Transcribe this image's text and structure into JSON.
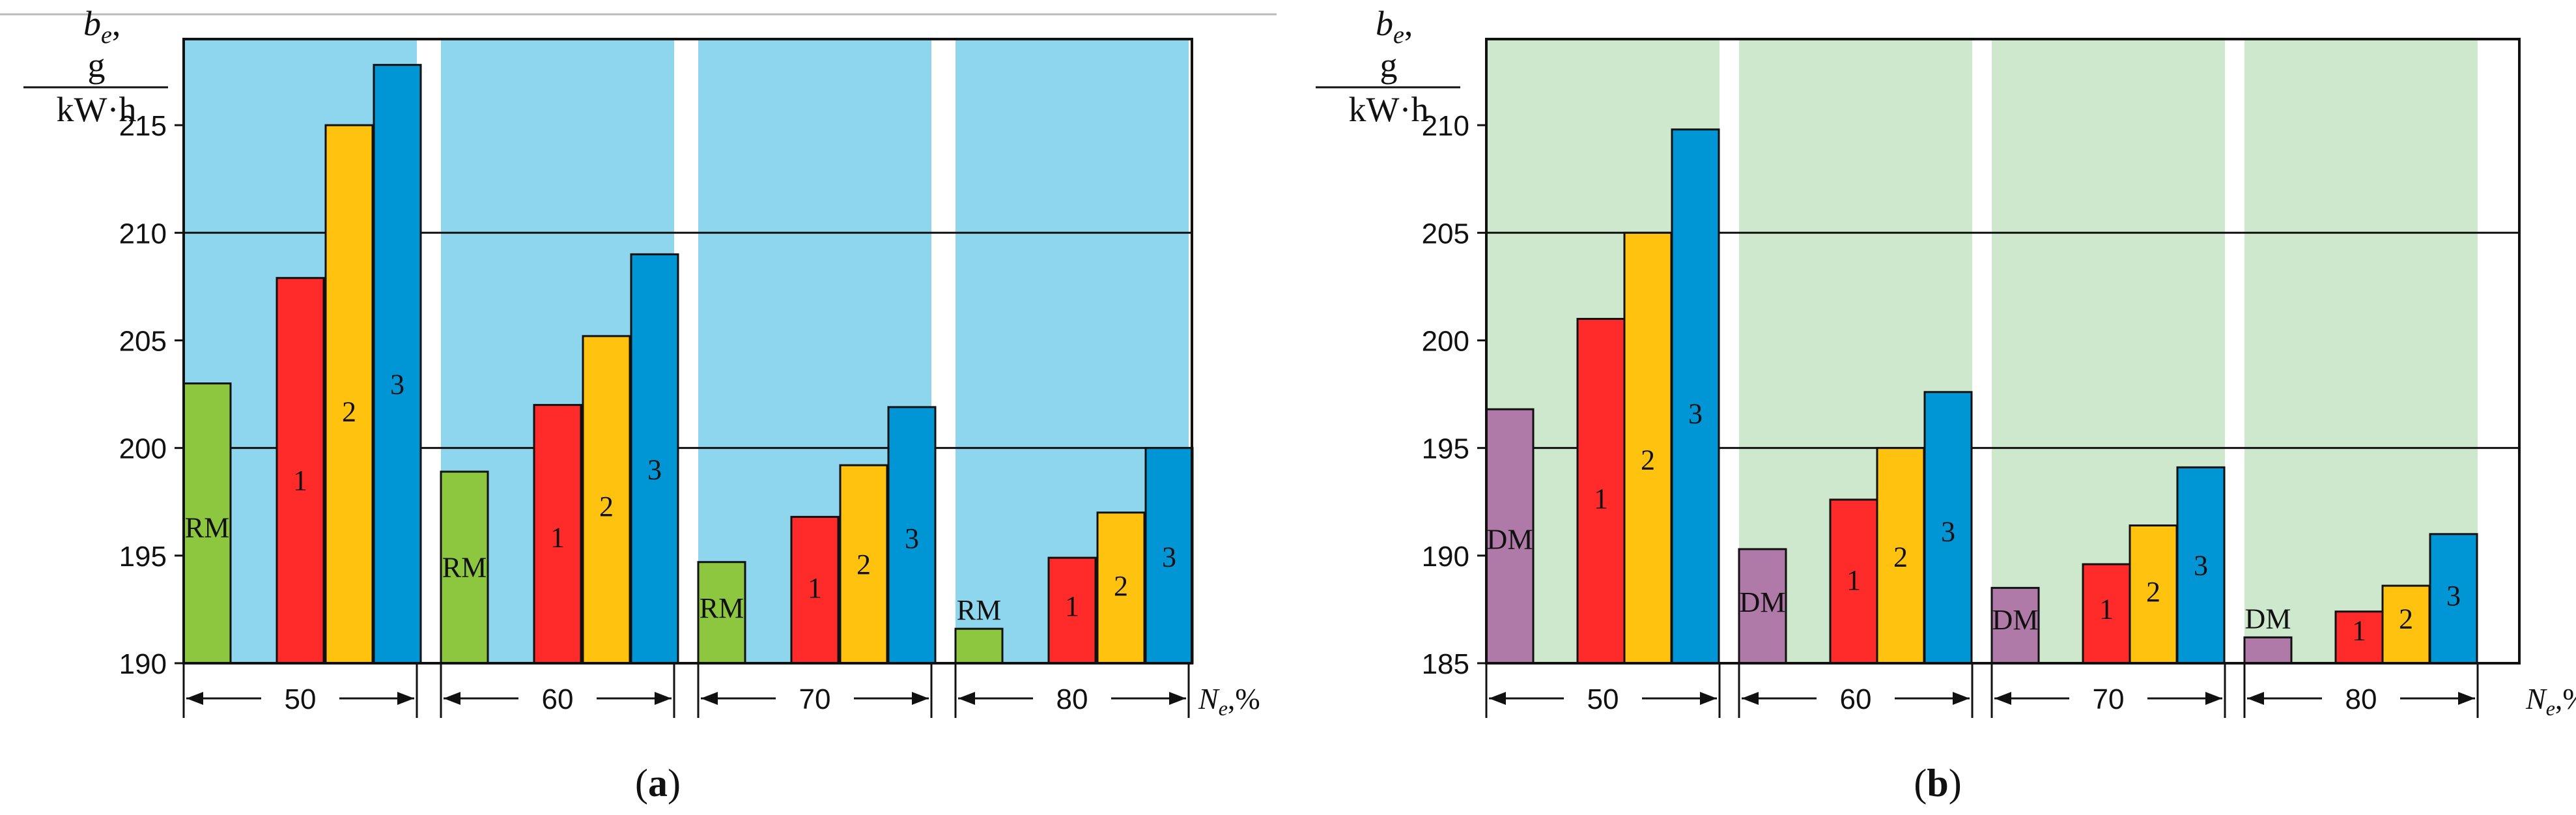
{
  "figure": {
    "x_unit_prefix": "N",
    "x_unit_sub": "e",
    "x_unit_suffix": ",%",
    "y_symbol": "b",
    "y_symbol_sub": "e",
    "y_symbol_comma": ",",
    "y_unit_num": "g",
    "y_unit_den": "kW·h"
  },
  "colors": {
    "RM": "#8dc63f",
    "DM": "#b07aa8",
    "1": "#ff2a2a",
    "2": "#ffc20e",
    "3": "#0096d6",
    "panel_a_bg": "#8ed5ee",
    "panel_b_bg": "#cde8cc"
  },
  "chart_data": [
    {
      "type": "bar",
      "panel": "(a)",
      "panel_letter": "a",
      "xlabel": "Ne,%",
      "ylabel": "be, g/(kW·h)",
      "ylim": [
        190,
        219
      ],
      "yticks": [
        190,
        195,
        200,
        205,
        210,
        215
      ],
      "gridlines": [
        200,
        210
      ],
      "categories": [
        "50",
        "60",
        "70",
        "80"
      ],
      "series_names": [
        "RM",
        "1",
        "2",
        "3"
      ],
      "values": [
        [
          203,
          207.9,
          215,
          217.8
        ],
        [
          198.9,
          202,
          205.2,
          209
        ],
        [
          194.7,
          196.8,
          199.2,
          201.9
        ],
        [
          191.6,
          194.9,
          197,
          200
        ]
      ]
    },
    {
      "type": "bar",
      "panel": "(b)",
      "panel_letter": "b",
      "xlabel": "Ne,%",
      "ylabel": "be, g/(kW·h)",
      "ylim": [
        185,
        214
      ],
      "yticks": [
        185,
        190,
        195,
        200,
        205,
        210
      ],
      "gridlines": [
        195,
        205
      ],
      "categories": [
        "50",
        "60",
        "70",
        "80"
      ],
      "series_names": [
        "DM",
        "1",
        "2",
        "3"
      ],
      "values": [
        [
          196.8,
          201,
          205,
          209.8
        ],
        [
          190.3,
          192.6,
          195,
          197.6
        ],
        [
          188.5,
          189.6,
          191.4,
          194.1
        ],
        [
          186.2,
          187.4,
          188.6,
          191.0
        ]
      ]
    }
  ]
}
